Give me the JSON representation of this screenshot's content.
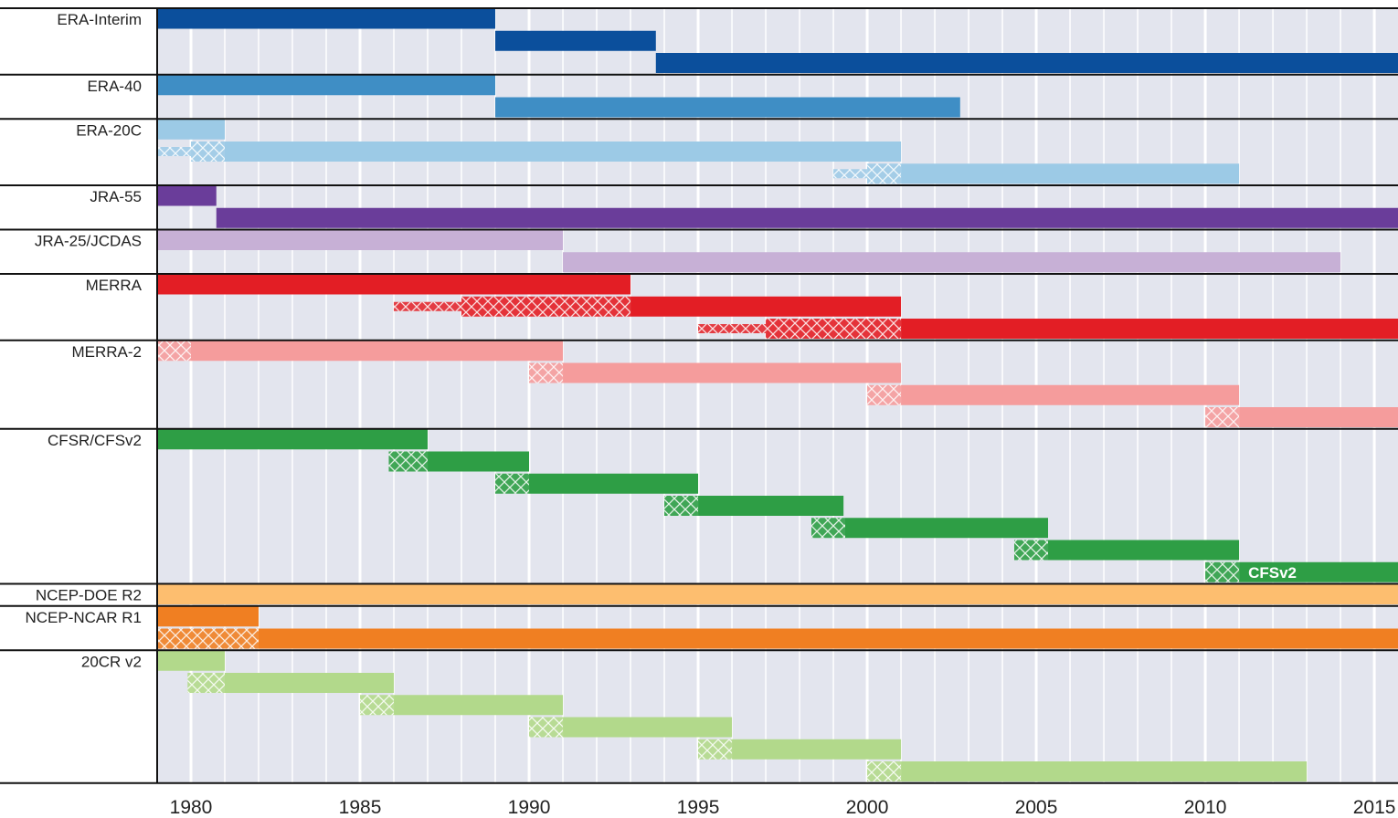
{
  "chart_data": {
    "type": "timeline",
    "xlim": [
      1979,
      2015.7
    ],
    "xticks": [
      1980,
      1985,
      1990,
      1995,
      2000,
      2005,
      2010,
      2015
    ],
    "xgrid": [
      1979,
      1980,
      1981,
      1982,
      1983,
      1984,
      1985,
      1986,
      1987,
      1988,
      1989,
      1990,
      1991,
      1992,
      1993,
      1994,
      1995,
      1996,
      1997,
      1998,
      1999,
      2000,
      2001,
      2002,
      2003,
      2004,
      2005,
      2006,
      2007,
      2008,
      2009,
      2010,
      2011,
      2012,
      2013,
      2014,
      2015
    ],
    "series": [
      {
        "name": "ERA-Interim",
        "color": "#0b4f9c",
        "streams": [
          {
            "start": 1979,
            "end": 1989
          },
          {
            "start": 1989,
            "end": 1993.75
          },
          {
            "start": 1993.75,
            "end": 2016
          }
        ]
      },
      {
        "name": "ERA-40",
        "color": "#3f8ec5",
        "streams": [
          {
            "start": 1979,
            "end": 1989
          },
          {
            "start": 1989,
            "end": 2002.75
          }
        ]
      },
      {
        "name": "ERA-20C",
        "color": "#9ccae6",
        "streams": [
          {
            "start": 1979,
            "end": 1981
          },
          {
            "thin": 1979,
            "spinup": 1980,
            "start": 1981,
            "end": 2001
          },
          {
            "thin": 1999,
            "spinup": 2000,
            "start": 2001,
            "end": 2011
          }
        ]
      },
      {
        "name": "JRA-55",
        "color": "#6a3d9a",
        "streams": [
          {
            "start": 1979,
            "end": 1980.75
          },
          {
            "start": 1980.75,
            "end": 2016
          }
        ]
      },
      {
        "name": "JRA-25/JCDAS",
        "color": "#c7b0d6",
        "streams": [
          {
            "start": 1979,
            "end": 1991
          },
          {
            "start": 1991,
            "end": 2014
          }
        ]
      },
      {
        "name": "MERRA",
        "color": "#e31e25",
        "streams": [
          {
            "start": 1979,
            "end": 1993
          },
          {
            "thin": 1986,
            "spinup": 1988,
            "start": 1993,
            "end": 2001
          },
          {
            "thin": 1995,
            "spinup": 1997,
            "start": 2001,
            "end": 2016
          }
        ]
      },
      {
        "name": "MERRA-2",
        "color": "#f59c9c",
        "streams": [
          {
            "spinup": 1979,
            "start": 1980,
            "end": 1991
          },
          {
            "spinup": 1990,
            "start": 1991,
            "end": 2001
          },
          {
            "spinup": 2000,
            "start": 2001,
            "end": 2011
          },
          {
            "spinup": 2010,
            "start": 2011,
            "end": 2016
          }
        ]
      },
      {
        "name": "CFSR/CFSv2",
        "color": "#2e9e45",
        "streams": [
          {
            "start": 1979,
            "end": 1987
          },
          {
            "spinup": 1985.85,
            "start": 1987,
            "end": 1990
          },
          {
            "spinup": 1989,
            "start": 1990,
            "end": 1995
          },
          {
            "spinup": 1994,
            "start": 1995,
            "end": 1999.3
          },
          {
            "spinup": 1998.35,
            "start": 1999.35,
            "end": 2005.35
          },
          {
            "spinup": 2004.35,
            "start": 2005.35,
            "end": 2011
          },
          {
            "spinup": 2010,
            "start": 2011,
            "end": 2016,
            "label": "CFSv2"
          }
        ]
      },
      {
        "name": "NCEP-DOE R2",
        "color": "#fdbe6f",
        "streams": [
          {
            "start": 1979,
            "end": 2016
          }
        ]
      },
      {
        "name": "NCEP-NCAR R1",
        "color": "#f07f22",
        "streams": [
          {
            "start": 1979,
            "end": 1982
          },
          {
            "spinup": 1979,
            "start": 1982,
            "end": 2016
          }
        ]
      },
      {
        "name": "20CR v2",
        "color": "#b2d98b",
        "streams": [
          {
            "start": 1979,
            "end": 1981
          },
          {
            "spinup": 1979.9,
            "start": 1981,
            "end": 1986
          },
          {
            "spinup": 1985,
            "start": 1986,
            "end": 1991
          },
          {
            "spinup": 1990,
            "start": 1991,
            "end": 1996
          },
          {
            "spinup": 1995,
            "start": 1996,
            "end": 2001
          },
          {
            "spinup": 2000,
            "start": 2001,
            "end": 2013
          }
        ]
      }
    ]
  }
}
